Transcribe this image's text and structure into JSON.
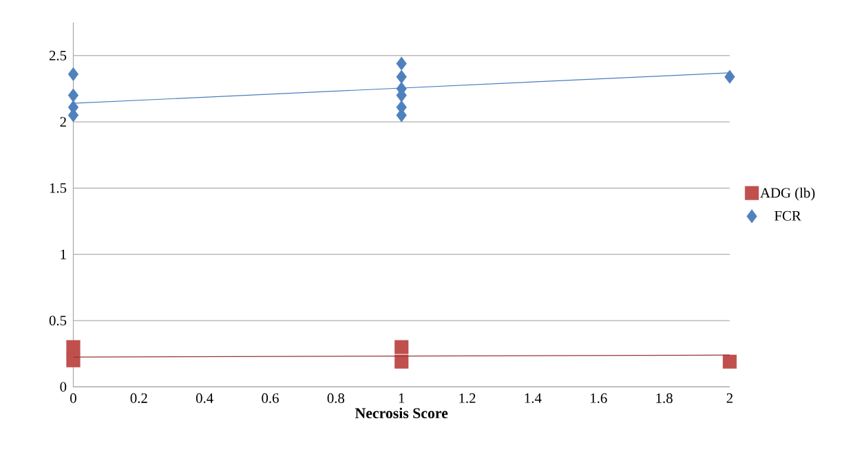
{
  "chart_data": {
    "type": "scatter",
    "xlabel": "Necrosis Score",
    "xlim": [
      0,
      2
    ],
    "xticks": [
      0,
      0.2,
      0.4,
      0.6,
      0.8,
      1,
      1.2,
      1.4,
      1.6,
      1.8,
      2
    ],
    "ylim": [
      0,
      2.75
    ],
    "yticks": [
      0,
      0.5,
      1,
      1.5,
      2,
      2.5
    ],
    "grid": "y",
    "legend": "right",
    "series": [
      {
        "name": "ADG (lb)",
        "marker": "square",
        "color": "#c0504d",
        "x": [
          0,
          0,
          1,
          1,
          2
        ],
        "values": [
          0.3,
          0.2,
          0.3,
          0.19,
          0.19
        ]
      },
      {
        "name": "FCR",
        "marker": "diamond",
        "color": "#4f81bd",
        "x": [
          0,
          0,
          0,
          0,
          1,
          1,
          1,
          1,
          1,
          1,
          2
        ],
        "values": [
          2.36,
          2.2,
          2.11,
          2.05,
          2.44,
          2.34,
          2.25,
          2.2,
          2.11,
          2.05,
          2.34
        ]
      },
      {
        "type": "line",
        "marker": "none",
        "color": "#953735",
        "x": [
          0,
          2
        ],
        "values": [
          0.225,
          0.24
        ]
      },
      {
        "type": "line",
        "marker": "none",
        "color": "#4a7ebb",
        "x": [
          0,
          2
        ],
        "values": [
          2.14,
          2.37
        ]
      }
    ]
  }
}
